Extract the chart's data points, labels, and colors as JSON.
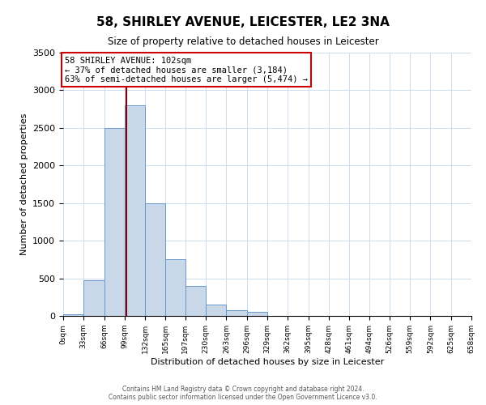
{
  "title": "58, SHIRLEY AVENUE, LEICESTER, LE2 3NA",
  "subtitle": "Size of property relative to detached houses in Leicester",
  "xlabel": "Distribution of detached houses by size in Leicester",
  "ylabel": "Number of detached properties",
  "bar_color": "#c8d8e8",
  "bar_edge_color": "#6699cc",
  "bin_edges": [
    0,
    33,
    66,
    99,
    132,
    165,
    197,
    230,
    263,
    296,
    329,
    362,
    395,
    428,
    461,
    494,
    526,
    559,
    592,
    625,
    658
  ],
  "bin_labels": [
    "0sqm",
    "33sqm",
    "66sqm",
    "99sqm",
    "132sqm",
    "165sqm",
    "197sqm",
    "230sqm",
    "263sqm",
    "296sqm",
    "329sqm",
    "362sqm",
    "395sqm",
    "428sqm",
    "461sqm",
    "494sqm",
    "526sqm",
    "559sqm",
    "592sqm",
    "625sqm",
    "658sqm"
  ],
  "bar_heights": [
    25,
    475,
    2500,
    2800,
    1500,
    750,
    400,
    150,
    75,
    50,
    0,
    0,
    0,
    0,
    0,
    0,
    0,
    0,
    0,
    0
  ],
  "property_size": 102,
  "vline_color": "#8b0000",
  "annotation_line1": "58 SHIRLEY AVENUE: 102sqm",
  "annotation_line2": "← 37% of detached houses are smaller (3,184)",
  "annotation_line3": "63% of semi-detached houses are larger (5,474) →",
  "annotation_box_color": "#ffffff",
  "annotation_box_edge_color": "#cc0000",
  "ylim": [
    0,
    3500
  ],
  "yticks": [
    0,
    500,
    1000,
    1500,
    2000,
    2500,
    3000,
    3500
  ],
  "footer_line1": "Contains HM Land Registry data © Crown copyright and database right 2024.",
  "footer_line2": "Contains public sector information licensed under the Open Government Licence v3.0.",
  "background_color": "#ffffff",
  "grid_color": "#ccddee"
}
